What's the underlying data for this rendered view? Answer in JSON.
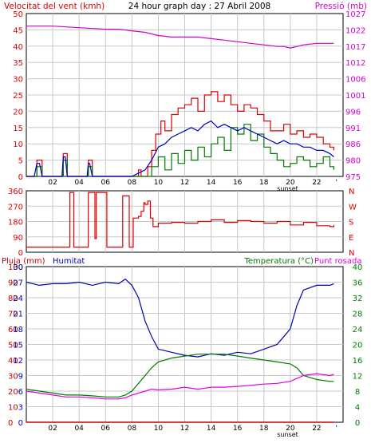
{
  "header": {
    "left_title": "Velocitat del vent (kmh)",
    "center_title": "24 hour graph day : 27 Abril 2008",
    "right_title": "Pressió (mb)"
  },
  "colors": {
    "wind": "#e00000",
    "gust": "#e00000",
    "avg_wind": "#0000c0",
    "wind_green": "#007a00",
    "pressure": "#d000d0",
    "direction": "#e00000",
    "humidity": "#0000b0",
    "temperature": "#007a00",
    "dewpoint": "#e000e0",
    "rain": "#c00000",
    "grid": "#c8c8c8",
    "frame": "#000000"
  },
  "x_axis": {
    "ticks": [
      "02",
      "04",
      "06",
      "08",
      "10",
      "12",
      "14",
      "16",
      "18",
      "20",
      "22"
    ],
    "sunset_label": "sunset",
    "end_mark": "'"
  },
  "chart_data": [
    {
      "type": "line",
      "name": "wind-pressure",
      "title": "24 hour graph day : 27 Abril 2008",
      "ylabel_left": "Velocitat del vent (kmh)",
      "ylabel_right": "Pressió (mb)",
      "ylim_left": [
        0,
        50
      ],
      "ylim_right": [
        975,
        1027
      ],
      "yticks_left": [
        "50",
        "45",
        "40",
        "35",
        "30",
        "25",
        "20",
        "15",
        "10",
        "5",
        "0"
      ],
      "yticks_right": [
        "1027",
        "1022",
        "1017",
        "1012",
        "1006",
        "1001",
        "996",
        "991",
        "986",
        "980",
        "975"
      ],
      "xlim": [
        0,
        24
      ],
      "grid": true,
      "series": [
        {
          "key": "gust",
          "x": [
            0,
            0.6,
            0.8,
            1,
            1.2,
            2.7,
            2.8,
            2.95,
            3.1,
            4.6,
            4.7,
            4.8,
            5,
            8,
            8.5,
            8.7,
            9.2,
            9.5,
            9.8,
            10.2,
            10.5,
            11,
            11.5,
            12,
            12.5,
            13,
            13.5,
            14,
            14.5,
            15,
            15.5,
            16,
            16.5,
            17,
            17.5,
            18,
            18.5,
            19,
            19.5,
            20,
            20.5,
            21,
            21.5,
            22,
            22.5,
            23,
            23.3
          ],
          "y": [
            0,
            0,
            5,
            5,
            0,
            0,
            7,
            7,
            0,
            0,
            5,
            5,
            0,
            0,
            2,
            0,
            3,
            8,
            13,
            17,
            14,
            19,
            21,
            22,
            24,
            20,
            25,
            26,
            23,
            25,
            22,
            20,
            22,
            21,
            19,
            17,
            14,
            14,
            16,
            13,
            14,
            12,
            13,
            12,
            10,
            9,
            8
          ]
        },
        {
          "key": "avg",
          "x": [
            0,
            0.6,
            0.8,
            1,
            1.2,
            2.7,
            2.8,
            2.95,
            3.1,
            4.6,
            4.7,
            4.8,
            5,
            8,
            8.5,
            9,
            9.5,
            10,
            10.5,
            11,
            11.5,
            12,
            12.5,
            13,
            13.5,
            14,
            14.5,
            15,
            15.5,
            16,
            16.5,
            17,
            17.5,
            18,
            18.5,
            19,
            19.5,
            20,
            20.5,
            21,
            21.5,
            22,
            22.5,
            23,
            23.3
          ],
          "y": [
            0,
            0,
            4,
            4,
            0,
            0,
            6,
            6,
            0,
            0,
            4,
            4,
            0,
            0,
            1,
            2,
            5,
            9,
            10,
            12,
            13,
            14,
            15,
            14,
            16,
            17,
            15,
            16,
            15,
            14,
            15,
            14,
            13,
            12,
            11,
            10,
            11,
            10,
            10,
            9,
            9,
            8,
            8,
            7,
            6
          ]
        },
        {
          "key": "green",
          "x": [
            0,
            0.6,
            0.8,
            1,
            1.2,
            2.7,
            2.8,
            2.95,
            3.1,
            4.6,
            4.7,
            4.8,
            5,
            9,
            9.5,
            10,
            10.5,
            11,
            11.5,
            12,
            12.5,
            13,
            13.5,
            14,
            14.5,
            15,
            15.5,
            16,
            16.5,
            17,
            17.5,
            18,
            18.5,
            19,
            19.5,
            20,
            20.5,
            21,
            21.5,
            22,
            22.5,
            23,
            23.3
          ],
          "y": [
            0,
            0,
            3,
            3,
            0,
            0,
            5,
            5,
            0,
            0,
            3,
            3,
            0,
            0,
            3,
            6,
            2,
            7,
            4,
            8,
            5,
            9,
            6,
            10,
            12,
            8,
            15,
            13,
            16,
            11,
            13,
            9,
            7,
            5,
            3,
            4,
            6,
            5,
            3,
            4,
            6,
            3,
            2
          ]
        },
        {
          "key": "pressure",
          "x": [
            0,
            2,
            4,
            6,
            7,
            8,
            9,
            10,
            11,
            12,
            13,
            14,
            15,
            16,
            17,
            18,
            19,
            19.5,
            20,
            21,
            22,
            23,
            23.3
          ],
          "y": [
            1023,
            1023,
            1022.5,
            1022,
            1022,
            1021.5,
            1021,
            1020,
            1019.5,
            1019.5,
            1019.5,
            1019,
            1018.5,
            1018,
            1017.5,
            1017,
            1016.5,
            1016.5,
            1016,
            1017,
            1017.5,
            1017.5,
            1017.5
          ]
        }
      ]
    },
    {
      "type": "line",
      "name": "wind-direction",
      "ylim": [
        0,
        360
      ],
      "yticks_left": [
        "360",
        "270",
        "180",
        "90",
        "0"
      ],
      "yticks_right": [
        "N",
        "W",
        "S",
        "E",
        "N"
      ],
      "xlim": [
        0,
        24
      ],
      "grid": true,
      "series": [
        {
          "key": "direction",
          "x": [
            0,
            3.2,
            3.3,
            3.4,
            3.6,
            3.7,
            4.7,
            4.8,
            5.2,
            5.3,
            6,
            6.1,
            7.2,
            7.3,
            7.4,
            7.8,
            8,
            8.1,
            8.5,
            8.7,
            8.9,
            9,
            9.2,
            9.4,
            9.6,
            10,
            11,
            12,
            13,
            14,
            15,
            16,
            17,
            18,
            19,
            20,
            21,
            22,
            23,
            23.3
          ],
          "y": [
            30,
            30,
            350,
            350,
            30,
            30,
            350,
            350,
            80,
            350,
            350,
            30,
            30,
            330,
            330,
            30,
            30,
            200,
            210,
            240,
            290,
            280,
            300,
            200,
            150,
            170,
            175,
            170,
            180,
            190,
            175,
            185,
            180,
            170,
            180,
            160,
            175,
            155,
            150,
            160
          ]
        }
      ]
    },
    {
      "type": "line",
      "name": "rain-humidity-temperature",
      "ylabel_left": "Pluja (mm)",
      "ylabel_humidity": "Humitat",
      "ylabel_right": "Temperatura (°C) Punt rosada",
      "ylim_left": [
        0,
        30
      ],
      "ylim_right": [
        0,
        40
      ],
      "yticks_left": [
        "100",
        "90",
        "80",
        "70",
        "60",
        "50",
        "40",
        "30",
        "20",
        "10",
        "0"
      ],
      "yticks_mid": [
        "30",
        "27",
        "24",
        "21",
        "18",
        "15",
        "12",
        "9",
        "6",
        "3",
        "0"
      ],
      "yticks_right": [
        "40",
        "36",
        "32",
        "28",
        "24",
        "20",
        "16",
        "12",
        "8",
        "4",
        "0"
      ],
      "xlim": [
        0,
        24
      ],
      "grid": true,
      "series": [
        {
          "key": "humidity",
          "x": [
            0,
            1,
            2,
            3,
            4,
            5,
            6,
            7,
            7.5,
            8,
            8.5,
            9,
            9.5,
            10,
            11,
            12,
            13,
            14,
            15,
            16,
            17,
            18,
            19,
            19.5,
            20,
            20.5,
            21,
            22,
            23,
            23.3
          ],
          "y": [
            90,
            88,
            89,
            89,
            90,
            88,
            90,
            89,
            92,
            88,
            80,
            65,
            55,
            47,
            45,
            43,
            42,
            44,
            43,
            45,
            44,
            47,
            50,
            55,
            60,
            75,
            85,
            88,
            88,
            89
          ]
        },
        {
          "key": "temperature",
          "x": [
            0,
            1,
            2,
            3,
            4,
            5,
            6,
            7,
            7.5,
            8,
            8.5,
            9,
            9.5,
            10,
            11,
            12,
            13,
            14,
            15,
            16,
            17,
            18,
            19,
            20,
            20.5,
            21,
            22,
            23,
            23.3
          ],
          "y": [
            8.5,
            8,
            7.5,
            7,
            7,
            6.8,
            6.5,
            6.5,
            7,
            8,
            10,
            12,
            14,
            15.5,
            16.5,
            17,
            17.5,
            17.5,
            17.5,
            17,
            16.5,
            16,
            15.5,
            15,
            14,
            12,
            11,
            10.5,
            10.5
          ]
        },
        {
          "key": "dewpoint",
          "x": [
            0,
            1,
            2,
            3,
            4,
            5,
            6,
            7,
            7.5,
            8,
            8.5,
            9,
            9.5,
            10,
            11,
            12,
            13,
            14,
            15,
            16,
            17,
            18,
            19,
            20,
            21,
            22,
            23,
            23.3
          ],
          "y": [
            8,
            7.5,
            7,
            6.5,
            6.5,
            6.3,
            6,
            6,
            6.3,
            7,
            7.5,
            8,
            8.5,
            8.3,
            8.5,
            9,
            8.5,
            9,
            9,
            9.2,
            9.5,
            9.8,
            10,
            10.5,
            12,
            12.5,
            12,
            12.3
          ]
        },
        {
          "key": "rain",
          "x": [
            0,
            23.3
          ],
          "y": [
            0,
            0
          ]
        }
      ]
    }
  ],
  "panel3_labels": {
    "rain": "Pluja (mm)",
    "humidity": "Humitat",
    "temperature": "Temperatura (°C)",
    "dewpoint": "Punt rosada"
  }
}
